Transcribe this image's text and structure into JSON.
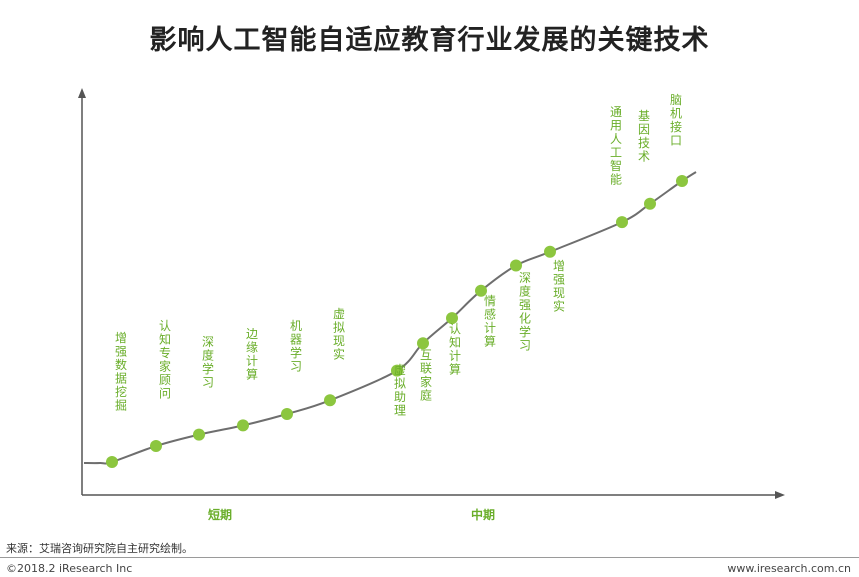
{
  "chart_data": {
    "type": "line",
    "title": "影响人工智能自适应教育行业发展的关键技术",
    "xlabel": "",
    "ylabel": "",
    "grid": false,
    "legend": "none",
    "line_color": "#6e6e6e",
    "point_color": "#8cc63f",
    "label_color": "#6aae2a",
    "axis_color": "#555555",
    "phases": [
      "短期",
      "中期"
    ],
    "points": [
      {
        "label": "增强数据挖掘",
        "x": 1,
        "y": 0.3
      },
      {
        "label": "认知专家顾问",
        "x": 2,
        "y": 1.0
      },
      {
        "label": "深度学习",
        "x": 3,
        "y": 1.5
      },
      {
        "label": "边缘计算",
        "x": 4,
        "y": 1.9
      },
      {
        "label": "机器学习",
        "x": 5,
        "y": 2.4
      },
      {
        "label": "虚拟现实",
        "x": 6,
        "y": 3.0
      },
      {
        "label": "虚拟助理",
        "x": 7,
        "y": 4.3
      },
      {
        "label": "互联家庭",
        "x": 8,
        "y": 5.5
      },
      {
        "label": "认知计算",
        "x": 9,
        "y": 6.6
      },
      {
        "label": "情感计算",
        "x": 10,
        "y": 7.8
      },
      {
        "label": "深度强化学习",
        "x": 11,
        "y": 8.9
      },
      {
        "label": "增强现实",
        "x": 12,
        "y": 9.5
      },
      {
        "label": "通用人工智能",
        "x": 13,
        "y": 10.8
      },
      {
        "label": "基因技术",
        "x": 14,
        "y": 11.6
      },
      {
        "label": "脑机接口",
        "x": 15,
        "y": 12.6
      }
    ]
  },
  "footer": {
    "source": "来源：艾瑞咨询研究院自主研究绘制。",
    "copyright": "©2018.2 iResearch Inc",
    "url": "www.iresearch.com.cn"
  }
}
